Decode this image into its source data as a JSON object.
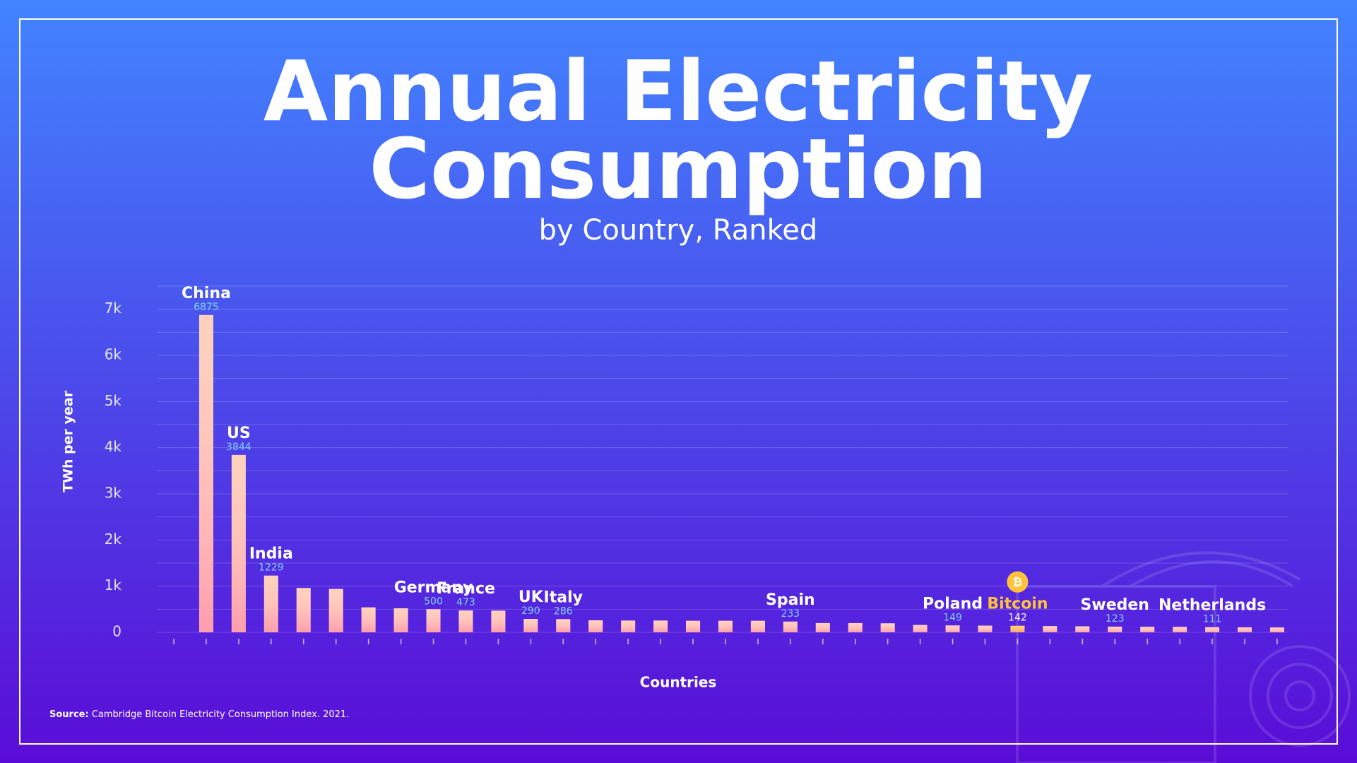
{
  "chart_data": {
    "type": "bar",
    "title_lines": [
      "Annual Electricity",
      "Consumption"
    ],
    "subtitle": "by Country, Ranked",
    "y_label": "TWh per year",
    "x_label": "Countries",
    "source_label": "Source:",
    "source": "Cambridge Bitcoin Electricity Consumption Index. 2021.",
    "categories": [
      null,
      "China",
      "US",
      "India",
      null,
      null,
      null,
      null,
      "Germany",
      "France",
      null,
      "UK",
      "Italy",
      null,
      null,
      null,
      null,
      null,
      null,
      "Spain",
      null,
      null,
      null,
      null,
      "Poland",
      null,
      "Bitcoin",
      null,
      null,
      "Sweden",
      null,
      null,
      "Netherlands",
      null,
      null
    ],
    "values": [
      null,
      6875,
      3844,
      1229,
      960,
      940,
      540,
      520,
      500,
      473,
      470,
      290,
      286,
      260,
      255,
      255,
      250,
      250,
      250,
      233,
      200,
      200,
      195,
      160,
      149,
      145,
      142,
      135,
      130,
      123,
      120,
      118,
      111,
      108,
      105
    ],
    "value_labels": [
      null,
      "6875",
      "3844",
      "1229",
      null,
      null,
      null,
      null,
      "500",
      "473",
      null,
      "290",
      "286",
      null,
      null,
      null,
      null,
      null,
      null,
      "233",
      null,
      null,
      null,
      null,
      "149",
      null,
      "142",
      null,
      null,
      "123",
      null,
      null,
      "111",
      null,
      null
    ],
    "color": "#ffc2a6",
    "highlight_category": "Bitcoin",
    "highlight_color": "#ffc23a",
    "ylim": [
      0,
      7500
    ],
    "yticks": [
      0,
      {
        "value": 1000,
        "label": "1k"
      },
      {
        "value": 2000,
        "label": "2k"
      },
      {
        "value": 3000,
        "label": "3k"
      },
      {
        "value": 4000,
        "label": "4k"
      },
      {
        "value": 5000,
        "label": "5k"
      },
      {
        "value": 6000,
        "label": "6k"
      },
      {
        "value": 7000,
        "label": "7k"
      }
    ],
    "grid_lines": [
      0,
      500,
      1000,
      1500,
      2000,
      2500,
      3000,
      3500,
      4000,
      4500,
      5000,
      5500,
      6000,
      6500,
      7000,
      7500
    ],
    "grid": true
  }
}
